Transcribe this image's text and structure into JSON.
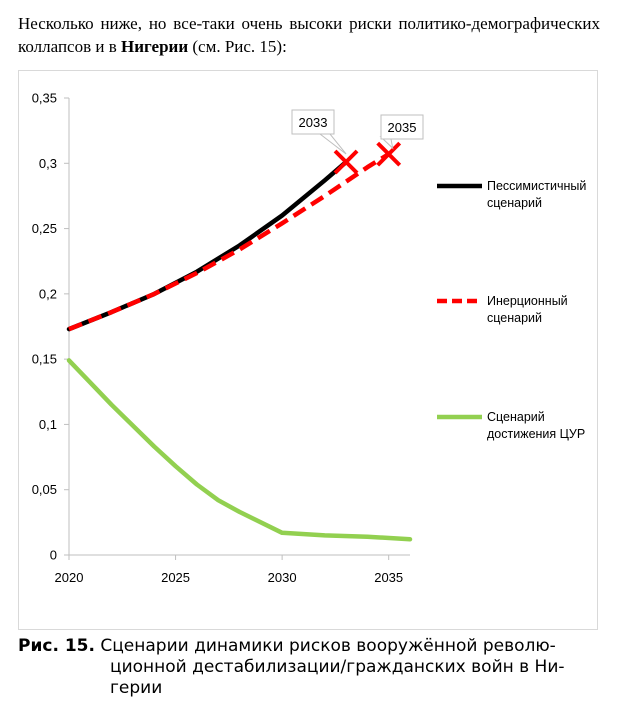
{
  "intro": {
    "text_before": "Несколько ниже, но все-таки очень высоки риски политико-демографических коллапсов и в ",
    "bold": "Нигерии",
    "text_after": " (см. Рис. 15):"
  },
  "caption": {
    "label": "Рис. 15.",
    "line1": " Сценарии динамики рисков вооружённой револю-",
    "line2": "ционной дестабилизации/гражданских войн в Ни-",
    "line3": "герии"
  },
  "chart_data": {
    "type": "line",
    "xlim": [
      2020,
      2036
    ],
    "ylim": [
      0,
      0.35
    ],
    "x_ticks": [
      "2020",
      "2025",
      "2030",
      "2035"
    ],
    "y_ticks": [
      "0",
      "0,05",
      "0,1",
      "0,15",
      "0,2",
      "0,25",
      "0,3",
      "0,35"
    ],
    "grid": false,
    "legend_position": "right",
    "series": [
      {
        "name": "Пессимистичный сценарий",
        "color": "#000000",
        "style": "solid",
        "x": [
          2020,
          2022,
          2024,
          2026,
          2028,
          2030,
          2032,
          2033
        ],
        "y": [
          0.173,
          0.186,
          0.2,
          0.217,
          0.237,
          0.26,
          0.287,
          0.301
        ]
      },
      {
        "name": "Инерционный сценарий",
        "color": "#ff0000",
        "style": "dashed",
        "x": [
          2020,
          2022,
          2024,
          2026,
          2028,
          2030,
          2032,
          2034,
          2035
        ],
        "y": [
          0.173,
          0.186,
          0.2,
          0.216,
          0.234,
          0.254,
          0.275,
          0.297,
          0.307
        ]
      },
      {
        "name": "Сценарий достижения ЦУР",
        "color": "#92d050",
        "style": "solid",
        "x": [
          2020,
          2022,
          2024,
          2025,
          2026,
          2027,
          2028,
          2030,
          2032,
          2034,
          2036
        ],
        "y": [
          0.149,
          0.115,
          0.083,
          0.068,
          0.054,
          0.042,
          0.033,
          0.017,
          0.015,
          0.014,
          0.012
        ]
      }
    ],
    "markers": [
      {
        "label": "2033",
        "x": 2033,
        "y": 0.301,
        "color": "#ff0000",
        "shape": "x"
      },
      {
        "label": "2035",
        "x": 2035,
        "y": 0.307,
        "color": "#ff0000",
        "shape": "x"
      }
    ]
  }
}
